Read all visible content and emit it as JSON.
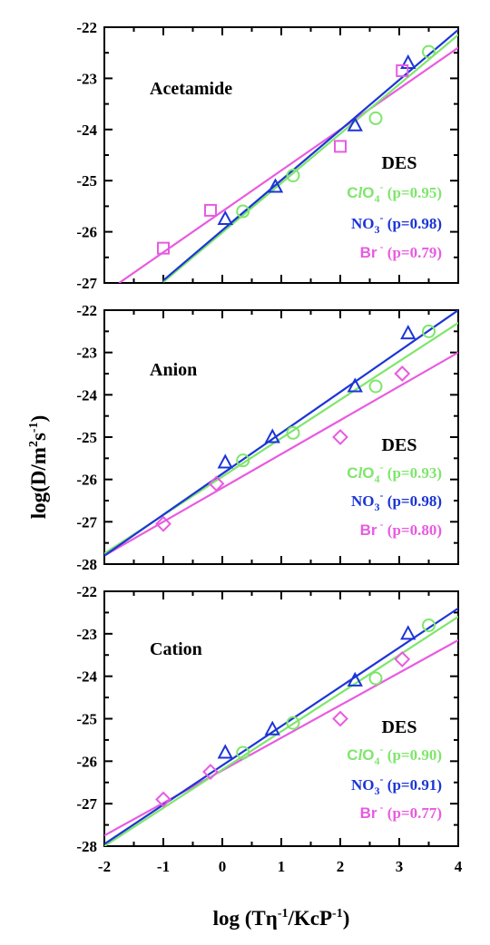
{
  "colors": {
    "ClO4": "#7ee66b",
    "NO3": "#1c35d6",
    "Br": "#e85be0"
  },
  "x_axis": {
    "label_main": "log (T",
    "label_eta": "η",
    "label_eta_sup": "-1",
    "label_mid": "/KcP",
    "label_p_sup": "-1",
    "label_end": ")",
    "ticks": [
      "-2",
      "-1",
      "0",
      "1",
      "2",
      "3",
      "4"
    ]
  },
  "y_axis": {
    "label_main": "log(D/m",
    "label_sup2": "2",
    "label_s": "s",
    "label_sup_neg1": "-1",
    "label_end": ")"
  },
  "chart_data": [
    {
      "type": "scatter",
      "title": "Acetamide",
      "legend_title": "DES",
      "xlim": [
        -2,
        4
      ],
      "ylim": [
        -27,
        -22
      ],
      "yticks": [
        "-27",
        "-26",
        "-25",
        "-24",
        "-23",
        "-22"
      ],
      "series": [
        {
          "name": "ClO4",
          "label_prefix": "C",
          "label_l": "l",
          "label_o": "O",
          "label_sub": "4",
          "label_sup": "-",
          "p_text": "(p=0.95)",
          "marker": "circle",
          "x": [
            0.35,
            1.2,
            2.6,
            3.5
          ],
          "y": [
            -25.6,
            -24.9,
            -23.78,
            -22.48
          ],
          "fit": {
            "x": [
              -1.0,
              4.0
            ],
            "y": [
              -26.98,
              -22.15
            ]
          }
        },
        {
          "name": "NO3",
          "label_prefix": "NO",
          "label_sub": "3",
          "label_sup": "-",
          "p_text": "(p=0.98)",
          "marker": "triangle",
          "x": [
            0.05,
            0.9,
            2.25,
            3.15
          ],
          "y": [
            -25.75,
            -25.12,
            -23.92,
            -22.7
          ],
          "fit": {
            "x": [
              -1.0,
              4.0
            ],
            "y": [
              -26.95,
              -22.05
            ]
          }
        },
        {
          "name": "Br",
          "label_prefix": "Br",
          "label_sup": "-",
          "p_text": "(p=0.79)",
          "marker": "square",
          "x": [
            -1.0,
            -0.2,
            2.0,
            3.05
          ],
          "y": [
            -26.32,
            -25.58,
            -24.33,
            -22.85
          ],
          "fit": {
            "x": [
              -1.75,
              4.0
            ],
            "y": [
              -27.0,
              -22.4
            ]
          }
        }
      ]
    },
    {
      "type": "scatter",
      "title": "Anion",
      "legend_title": "DES",
      "xlim": [
        -2,
        4
      ],
      "ylim": [
        -28,
        -22
      ],
      "yticks": [
        "-28",
        "-27",
        "-26",
        "-25",
        "-24",
        "-23",
        "-22"
      ],
      "series": [
        {
          "name": "ClO4",
          "label_prefix": "C",
          "label_l": "l",
          "label_o": "O",
          "label_sub": "4",
          "label_sup": "-",
          "p_text": "(p=0.93)",
          "marker": "circle",
          "x": [
            0.35,
            1.2,
            2.6,
            3.5
          ],
          "y": [
            -25.55,
            -24.9,
            -23.8,
            -22.5
          ],
          "fit": {
            "x": [
              -2.0,
              4.0
            ],
            "y": [
              -27.75,
              -22.3
            ]
          }
        },
        {
          "name": "NO3",
          "label_prefix": "NO",
          "label_sub": "3",
          "label_sup": "-",
          "p_text": "(p=0.98)",
          "marker": "triangle",
          "x": [
            0.05,
            0.85,
            2.25,
            3.15
          ],
          "y": [
            -25.6,
            -25.0,
            -23.8,
            -22.55
          ],
          "fit": {
            "x": [
              -2.0,
              4.0
            ],
            "y": [
              -27.8,
              -22.0
            ]
          }
        },
        {
          "name": "Br",
          "label_prefix": "Br",
          "label_sup": "-",
          "p_text": "(p=0.80)",
          "marker": "diamond",
          "x": [
            -1.0,
            -0.1,
            2.0,
            3.05
          ],
          "y": [
            -27.05,
            -26.1,
            -25.0,
            -23.5
          ],
          "fit": {
            "x": [
              -2.0,
              4.0
            ],
            "y": [
              -27.8,
              -23.0
            ]
          }
        }
      ]
    },
    {
      "type": "scatter",
      "title": "Cation",
      "legend_title": "DES",
      "xlim": [
        -2,
        4
      ],
      "ylim": [
        -28,
        -22
      ],
      "yticks": [
        "-28",
        "-27",
        "-26",
        "-25",
        "-24",
        "-23",
        "-22"
      ],
      "series": [
        {
          "name": "ClO4",
          "label_prefix": "C",
          "label_l": "l",
          "label_o": "O",
          "label_sub": "4",
          "label_sup": "-",
          "p_text": "(p=0.90)",
          "marker": "circle",
          "x": [
            0.35,
            1.2,
            2.6,
            3.5
          ],
          "y": [
            -25.8,
            -25.1,
            -24.05,
            -22.8
          ],
          "fit": {
            "x": [
              -2.0,
              4.0
            ],
            "y": [
              -28.0,
              -22.6
            ]
          }
        },
        {
          "name": "NO3",
          "label_prefix": "NO",
          "label_sub": "3",
          "label_sup": "-",
          "p_text": "(p=0.91)",
          "marker": "triangle",
          "x": [
            0.05,
            0.85,
            2.25,
            3.15
          ],
          "y": [
            -25.8,
            -25.25,
            -24.1,
            -23.0
          ],
          "fit": {
            "x": [
              -2.0,
              4.0
            ],
            "y": [
              -27.95,
              -22.4
            ]
          }
        },
        {
          "name": "Br",
          "label_prefix": "Br",
          "label_sup": "-",
          "p_text": "(p=0.77)",
          "marker": "diamond",
          "x": [
            -1.0,
            -0.2,
            2.0,
            3.05
          ],
          "y": [
            -26.9,
            -26.25,
            -25.0,
            -23.6
          ],
          "fit": {
            "x": [
              -2.0,
              4.0
            ],
            "y": [
              -27.75,
              -23.15
            ]
          }
        }
      ]
    }
  ]
}
